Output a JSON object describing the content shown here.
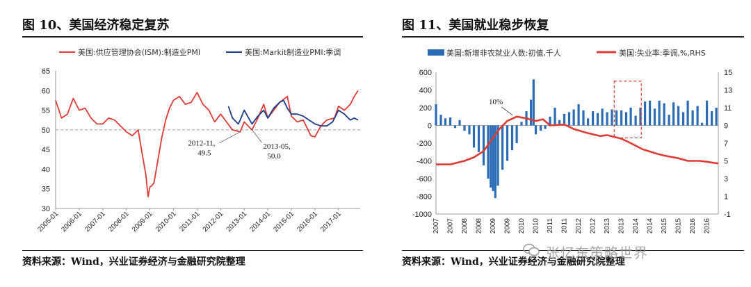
{
  "left": {
    "title": "图 10、美国经济稳定复苏",
    "source": "资料来源：Wind，兴业证券经济与金融研究院整理",
    "legend": [
      "美国:供应管理协会(ISM):制造业PMI",
      "美国:Markit制造业PMI:季调"
    ],
    "annotations": [
      {
        "label_line1": "2012-11,",
        "label_line2": "49.5",
        "x": 2012.83,
        "y": 49.5
      },
      {
        "label_line1": "2013-05,",
        "label_line2": "50.0",
        "x": 2013.33,
        "y": 50.0
      }
    ],
    "chart_data": {
      "type": "line",
      "title": "图 10、美国经济稳定复苏",
      "xlabel": "",
      "ylabel": "",
      "xlim": [
        2005.0,
        2017.92
      ],
      "ylim": [
        30,
        65
      ],
      "x_ticks": [
        "2005-01",
        "2006-01",
        "2007-01",
        "2008-01",
        "2009-01",
        "2010-01",
        "2011-01",
        "2012-01",
        "2013-01",
        "2014-01",
        "2015-01",
        "2016-01",
        "2017-01"
      ],
      "y_ticks": [
        30,
        35,
        40,
        45,
        50,
        55,
        60,
        65
      ],
      "reference_line": 50,
      "colors": {
        "ism": "#e03a35",
        "markit": "#1f3a8a"
      },
      "series": [
        {
          "name": "美国:供应管理协会(ISM):制造业PMI",
          "x": [
            2005.0,
            2005.25,
            2005.5,
            2005.75,
            2006.0,
            2006.25,
            2006.5,
            2006.75,
            2007.0,
            2007.25,
            2007.5,
            2007.75,
            2008.0,
            2008.25,
            2008.5,
            2008.67,
            2008.83,
            2008.92,
            2009.0,
            2009.08,
            2009.17,
            2009.33,
            2009.5,
            2009.67,
            2009.83,
            2010.0,
            2010.25,
            2010.5,
            2010.75,
            2011.0,
            2011.25,
            2011.5,
            2011.75,
            2012.0,
            2012.25,
            2012.5,
            2012.83,
            2013.0,
            2013.33,
            2013.58,
            2013.83,
            2014.0,
            2014.25,
            2014.5,
            2014.83,
            2015.0,
            2015.25,
            2015.5,
            2015.83,
            2016.0,
            2016.25,
            2016.5,
            2016.83,
            2017.0,
            2017.25,
            2017.5,
            2017.67,
            2017.83
          ],
          "y": [
            57.5,
            53,
            54,
            58,
            55,
            55.5,
            53,
            51.5,
            51.5,
            53,
            52.5,
            51,
            49.5,
            48.5,
            50,
            44,
            38.5,
            33,
            35.5,
            35.8,
            36.5,
            42,
            48,
            52.5,
            55.5,
            57.5,
            58.5,
            56.5,
            57,
            59.5,
            56.5,
            55,
            52,
            54,
            52,
            50,
            49.5,
            52,
            50.0,
            53,
            56.5,
            53,
            55,
            57,
            58.5,
            53.5,
            52,
            52.5,
            48.5,
            48.2,
            51,
            52.5,
            53,
            56,
            55,
            56.5,
            58.5,
            60
          ]
        },
        {
          "name": "美国:Markit制造业PMI:季调",
          "x": [
            2012.33,
            2012.5,
            2012.75,
            2012.83,
            2013.0,
            2013.33,
            2013.58,
            2013.83,
            2014.0,
            2014.25,
            2014.5,
            2014.67,
            2014.83,
            2015.0,
            2015.25,
            2015.5,
            2015.75,
            2016.0,
            2016.25,
            2016.5,
            2016.75,
            2017.0,
            2017.25,
            2017.5,
            2017.67,
            2017.83
          ],
          "y": [
            56,
            53,
            51.5,
            52.5,
            55,
            51.5,
            53.5,
            55,
            53,
            55.5,
            57,
            57.5,
            55.5,
            54,
            54,
            53.5,
            52.5,
            51.5,
            51,
            51,
            52,
            55,
            54,
            52.5,
            53,
            52.5
          ]
        }
      ]
    }
  },
  "right": {
    "title": "图 11、美国就业稳步恢复",
    "source": "资料来源：Wind，兴业证券经济与金融研究院整理",
    "legend": [
      "美国:新增非农就业人数:初值,千人",
      "美国:失业率:季调,%,RHS"
    ],
    "annotations": [
      {
        "label": "10%",
        "x": 2009.83,
        "y": 10
      }
    ],
    "chart_data": {
      "type": "bar",
      "title": "图 11、美国就业稳步恢复",
      "xlabel": "",
      "ylabel": "",
      "xlim": [
        2007.0,
        2016.9
      ],
      "ylim": [
        -1000,
        600
      ],
      "ylim_right": [
        -1,
        15
      ],
      "x_ticks": [
        "2007",
        "2007",
        "2008",
        "2008",
        "2009",
        "2009",
        "2010",
        "2010",
        "2011",
        "2011",
        "2012",
        "2012",
        "2013",
        "2013",
        "2014",
        "2014",
        "2015",
        "2015",
        "2016",
        "2016"
      ],
      "y_ticks": [
        -1000,
        -800,
        -600,
        -400,
        -200,
        0,
        200,
        400,
        600
      ],
      "y_ticks_right": [
        -1,
        1,
        3,
        5,
        7,
        9,
        11,
        13,
        15
      ],
      "colors": {
        "payrolls": "#2a6cb5",
        "unemployment": "#e03a35"
      },
      "highlight_box": {
        "x": [
          2013.25,
          2014.2
        ],
        "y": [
          -140,
          500
        ]
      },
      "series": [
        {
          "name": "美国:新增非农就业人数:初值,千人",
          "x": [
            2007.0,
            2007.17,
            2007.33,
            2007.5,
            2007.67,
            2007.83,
            2008.0,
            2008.17,
            2008.33,
            2008.5,
            2008.67,
            2008.83,
            2008.92,
            2009.0,
            2009.08,
            2009.17,
            2009.33,
            2009.5,
            2009.67,
            2009.83,
            2010.0,
            2010.17,
            2010.33,
            2010.42,
            2010.5,
            2010.67,
            2010.83,
            2011.0,
            2011.17,
            2011.33,
            2011.5,
            2011.67,
            2011.83,
            2012.0,
            2012.17,
            2012.33,
            2012.5,
            2012.67,
            2012.83,
            2013.0,
            2013.17,
            2013.33,
            2013.5,
            2013.67,
            2013.83,
            2014.0,
            2014.17,
            2014.33,
            2014.5,
            2014.67,
            2014.83,
            2015.0,
            2015.17,
            2015.33,
            2015.5,
            2015.67,
            2015.83,
            2016.0,
            2016.17,
            2016.33,
            2016.5,
            2016.67,
            2016.83
          ],
          "y": [
            240,
            120,
            80,
            90,
            -30,
            60,
            -60,
            -100,
            -250,
            -300,
            -450,
            -600,
            -700,
            -740,
            -820,
            -680,
            -500,
            -400,
            -280,
            -200,
            40,
            160,
            290,
            520,
            -100,
            -60,
            -40,
            100,
            200,
            60,
            130,
            150,
            180,
            240,
            170,
            80,
            160,
            140,
            190,
            150,
            180,
            170,
            170,
            150,
            200,
            110,
            200,
            270,
            280,
            190,
            280,
            250,
            120,
            260,
            220,
            150,
            280,
            170,
            220,
            30,
            280,
            160,
            200
          ]
        },
        {
          "name": "美国:失业率:季调,%,RHS",
          "x": [
            2007.0,
            2007.5,
            2008.0,
            2008.33,
            2008.67,
            2009.0,
            2009.25,
            2009.5,
            2009.83,
            2010.17,
            2010.5,
            2010.75,
            2011.0,
            2011.5,
            2011.83,
            2012.25,
            2012.75,
            2013.0,
            2013.5,
            2013.83,
            2014.25,
            2014.75,
            2015.0,
            2015.5,
            2015.83,
            2016.25,
            2016.5,
            2016.9
          ],
          "y": [
            4.6,
            4.6,
            5.0,
            5.4,
            6.1,
            7.6,
            8.7,
            9.5,
            10.0,
            9.8,
            9.5,
            9.7,
            9.0,
            9.1,
            8.6,
            8.2,
            7.8,
            7.9,
            7.5,
            7.0,
            6.3,
            5.8,
            5.6,
            5.3,
            5.0,
            5.0,
            4.9,
            4.7
          ]
        }
      ]
    }
  },
  "watermark": "张忆东策略世界"
}
